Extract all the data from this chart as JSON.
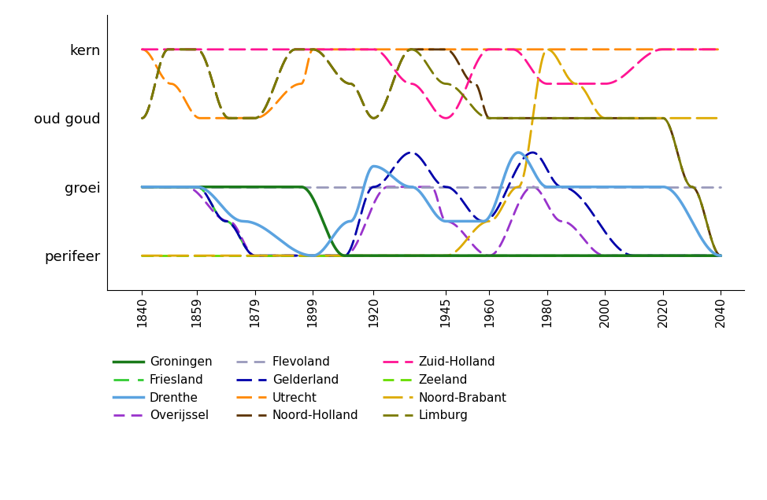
{
  "ytick_labels": [
    "perifeer",
    "groei",
    "oud goud",
    "kern"
  ],
  "ytick_values": [
    1,
    2,
    3,
    4
  ],
  "xtick_values": [
    1840,
    1859,
    1879,
    1899,
    1920,
    1945,
    1960,
    1980,
    2000,
    2020,
    2040
  ],
  "ylim": [
    0.5,
    4.5
  ],
  "xlim": [
    1828,
    2048
  ],
  "series": {
    "Groningen": {
      "color": "#1a7a1a",
      "solid": true,
      "lw": 2.5,
      "dashes": null
    },
    "Friesland": {
      "color": "#33cc33",
      "solid": false,
      "lw": 2.0,
      "dashes": [
        7,
        4
      ]
    },
    "Drenthe": {
      "color": "#5ba3e0",
      "solid": true,
      "lw": 2.5,
      "dashes": null
    },
    "Overijssel": {
      "color": "#9933cc",
      "solid": false,
      "lw": 2.0,
      "dashes": [
        5,
        3
      ]
    },
    "Flevoland": {
      "color": "#9999bb",
      "solid": false,
      "lw": 2.0,
      "dashes": [
        5,
        3
      ]
    },
    "Gelderland": {
      "color": "#0000aa",
      "solid": false,
      "lw": 2.0,
      "dashes": [
        7,
        3
      ]
    },
    "Utrecht": {
      "color": "#ff8800",
      "solid": false,
      "lw": 2.0,
      "dashes": [
        7,
        3
      ]
    },
    "Noord-Holland": {
      "color": "#5c3300",
      "solid": false,
      "lw": 2.0,
      "dashes": [
        7,
        3
      ]
    },
    "Zuid-Holland": {
      "color": "#ff1493",
      "solid": false,
      "lw": 2.0,
      "dashes": [
        7,
        3
      ]
    },
    "Zeeland": {
      "color": "#66dd00",
      "solid": false,
      "lw": 2.0,
      "dashes": [
        5,
        3
      ]
    },
    "Noord-Brabant": {
      "color": "#ddaa00",
      "solid": false,
      "lw": 2.0,
      "dashes": [
        9,
        3
      ]
    },
    "Limburg": {
      "color": "#7a7a00",
      "solid": false,
      "lw": 2.0,
      "dashes": [
        7,
        3
      ]
    }
  },
  "legend_cols": 3,
  "legend_order": [
    "Groningen",
    "Friesland",
    "Drenthe",
    "Overijssel",
    "Flevoland",
    "Gelderland",
    "Utrecht",
    "Noord-Holland",
    "Zuid-Holland",
    "Zeeland",
    "Noord-Brabant",
    "Limburg"
  ]
}
